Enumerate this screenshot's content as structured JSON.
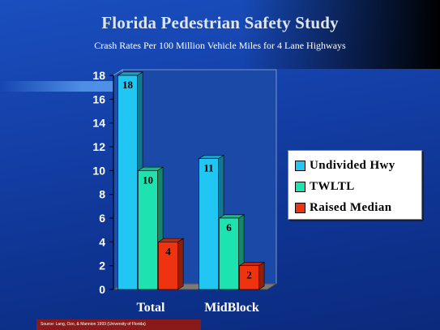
{
  "slide": {
    "title": "Florida Pedestrian Safety Study",
    "subtitle": "Crash Rates Per 100 Million Vehicle Miles for 4 Lane Highways",
    "source": "Source: Lang, Ozo, & Mannion 1993 (University of Florida)"
  },
  "chart_data": {
    "type": "bar",
    "title": "Florida Pedestrian Safety Study",
    "subtitle": "Crash Rates Per 100 Million Vehicle Miles for 4 Lane Highways",
    "categories": [
      "Total",
      "MidBlock"
    ],
    "series": [
      {
        "name": "Undivided Hwy",
        "values": [
          18,
          11
        ],
        "color": "#22c6f2"
      },
      {
        "name": "TWLTL",
        "values": [
          10,
          6
        ],
        "color": "#1de3b0"
      },
      {
        "name": "Raised Median",
        "values": [
          4,
          2
        ],
        "color": "#ee3311"
      }
    ],
    "xlabel": "",
    "ylabel": "",
    "ylim": [
      0,
      18
    ],
    "yticks": [
      0,
      2,
      4,
      6,
      8,
      10,
      12,
      14,
      16,
      18
    ],
    "data_labels": true,
    "legend_position": "right",
    "grid": false
  }
}
